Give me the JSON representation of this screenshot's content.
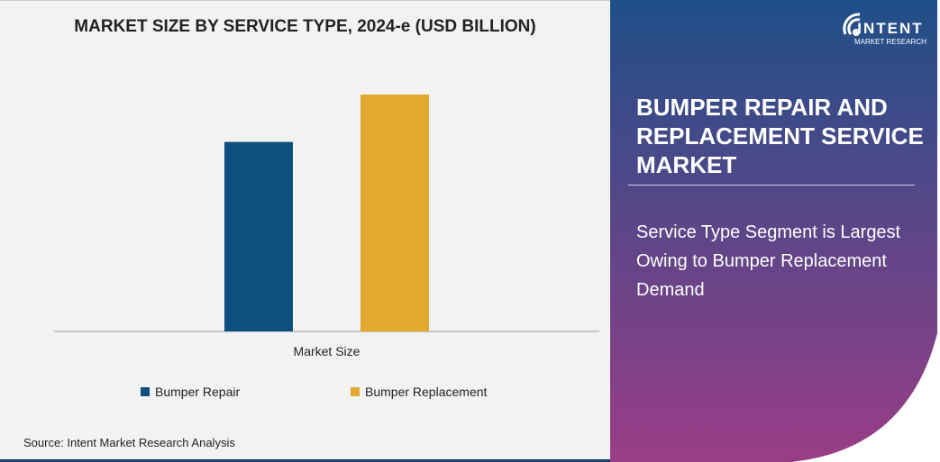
{
  "chart_data": {
    "type": "bar",
    "title": "MARKET SIZE BY SERVICE TYPE, 2024-e (USD BILLION)",
    "categories": [
      "Market Size"
    ],
    "series": [
      {
        "name": "Bumper Repair",
        "values": [
          0.8
        ],
        "color": "#0d4f7e"
      },
      {
        "name": "Bumper Replacement",
        "values": [
          1.0
        ],
        "color": "#e3a82e"
      }
    ],
    "ylim": [
      0,
      1.0
    ],
    "grid": false,
    "legend": "bottom"
  },
  "source": "Source: Intent Market Research Analysis",
  "panel": {
    "title": "BUMPER REPAIR AND REPLACEMENT SERVICE MARKET",
    "subtitle": "Service Type Segment is Largest Owing to Bumper Replacement Demand",
    "gradient_top": "#1f4f88",
    "gradient_bottom": "#9a3d87"
  },
  "logo": {
    "name": "INTENT",
    "tagline": "MARKET RESEARCH"
  }
}
